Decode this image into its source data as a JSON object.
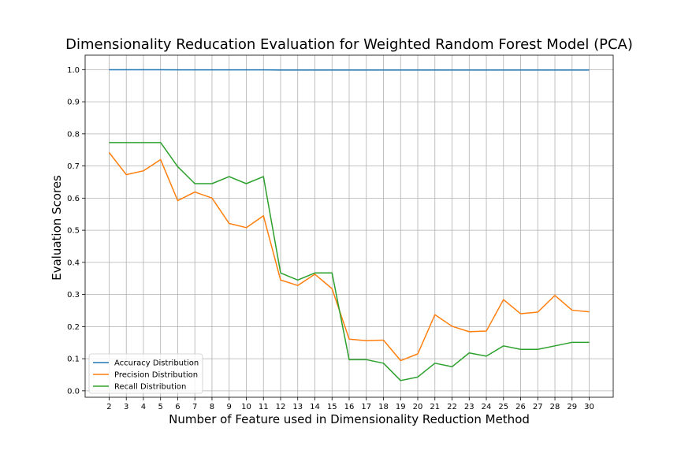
{
  "chart_data": {
    "type": "line",
    "title": "Dimensionality Reducation Evaluation for Weighted Random Forest Model (PCA)",
    "xlabel": "Number of Feature used in Dimensionality Reduction Method",
    "ylabel": "Evaluation Scores",
    "x": [
      2,
      3,
      4,
      5,
      6,
      7,
      8,
      9,
      10,
      11,
      12,
      13,
      14,
      15,
      16,
      17,
      18,
      19,
      20,
      21,
      22,
      23,
      24,
      25,
      26,
      27,
      28,
      29,
      30
    ],
    "xlim": [
      0.6,
      31.4
    ],
    "ylim": [
      -0.02,
      1.045
    ],
    "yticks": [
      0.0,
      0.1,
      0.2,
      0.3,
      0.4,
      0.5,
      0.6,
      0.7,
      0.8,
      0.9,
      1.0
    ],
    "ytick_labels": [
      "0.0",
      "0.1",
      "0.2",
      "0.3",
      "0.4",
      "0.5",
      "0.6",
      "0.7",
      "0.8",
      "0.9",
      "1.0"
    ],
    "xtick_labels": [
      "2",
      "3",
      "4",
      "5",
      "6",
      "7",
      "8",
      "9",
      "10",
      "11",
      "12",
      "13",
      "14",
      "15",
      "16",
      "17",
      "18",
      "19",
      "20",
      "21",
      "22",
      "23",
      "24",
      "25",
      "26",
      "27",
      "28",
      "29",
      "30"
    ],
    "grid": true,
    "legend_position": "bottom-left",
    "series": [
      {
        "name": "Accuracy Distribution",
        "color": "#1f77b4",
        "values": [
          0.9995,
          0.9995,
          0.9996,
          0.9996,
          0.9994,
          0.9994,
          0.9994,
          0.9994,
          0.9994,
          0.9994,
          0.9988,
          0.9988,
          0.9988,
          0.9988,
          0.9988,
          0.9988,
          0.9988,
          0.9988,
          0.9988,
          0.9988,
          0.9988,
          0.9988,
          0.9988,
          0.9988,
          0.9988,
          0.9988,
          0.9988,
          0.9988,
          0.9988
        ]
      },
      {
        "name": "Precision Distribution",
        "color": "#ff7f0e",
        "values": [
          0.742,
          0.673,
          0.685,
          0.72,
          0.592,
          0.619,
          0.6,
          0.521,
          0.508,
          0.545,
          0.345,
          0.328,
          0.363,
          0.318,
          0.161,
          0.156,
          0.158,
          0.094,
          0.115,
          0.237,
          0.201,
          0.184,
          0.186,
          0.284,
          0.24,
          0.245,
          0.297,
          0.251,
          0.246
        ]
      },
      {
        "name": "Recall Distribution",
        "color": "#2ca02c",
        "values": [
          0.773,
          0.773,
          0.773,
          0.773,
          0.698,
          0.645,
          0.645,
          0.667,
          0.645,
          0.667,
          0.367,
          0.345,
          0.367,
          0.367,
          0.097,
          0.097,
          0.086,
          0.032,
          0.043,
          0.086,
          0.075,
          0.118,
          0.108,
          0.14,
          0.129,
          0.129,
          0.14,
          0.151,
          0.151
        ]
      }
    ]
  }
}
